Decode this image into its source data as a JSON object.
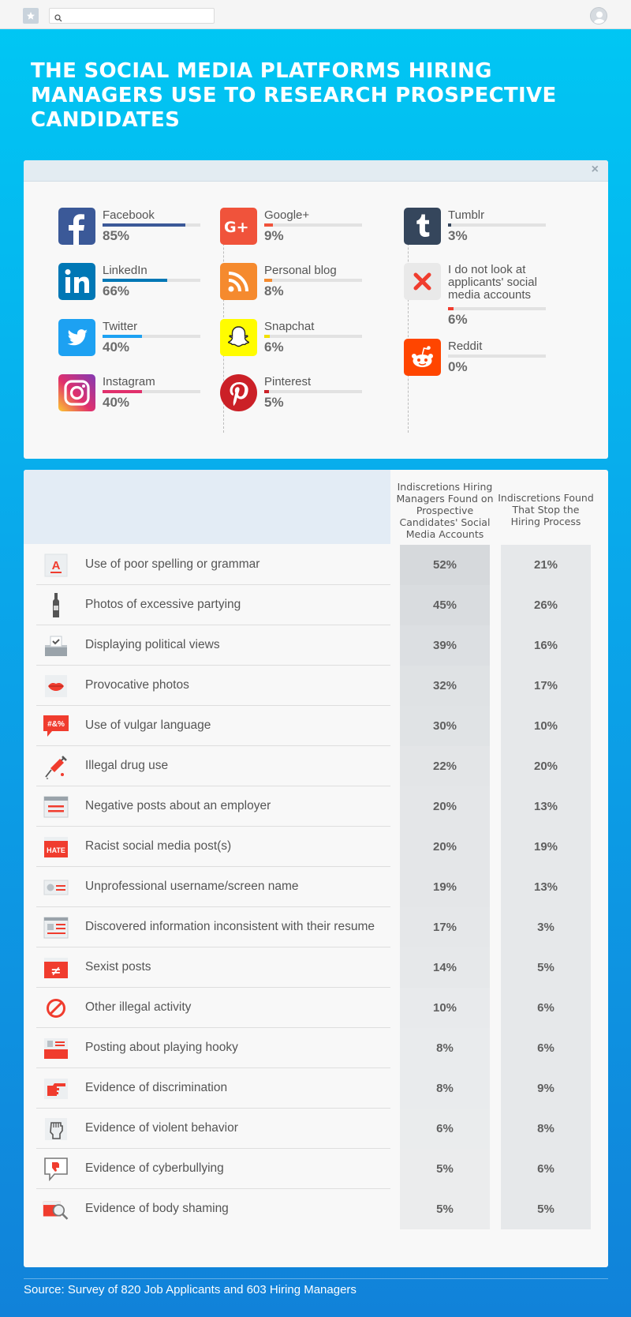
{
  "toolbar": {
    "search_placeholder": ""
  },
  "title": "THE SOCIAL MEDIA PLATFORMS HIRING MANAGERS USE TO RESEARCH PROSPECTIVE CANDIDATES",
  "platforms_card": {
    "close_label": "×",
    "platforms": [
      {
        "name": "Facebook",
        "percent": "85%",
        "value": 85,
        "icon": "facebook-icon",
        "color": "#3b5998"
      },
      {
        "name": "LinkedIn",
        "percent": "66%",
        "value": 66,
        "icon": "linkedin-icon",
        "color": "#0077b5"
      },
      {
        "name": "Twitter",
        "percent": "40%",
        "value": 40,
        "icon": "twitter-icon",
        "color": "#1da1f2"
      },
      {
        "name": "Instagram",
        "percent": "40%",
        "value": 40,
        "icon": "instagram-icon",
        "color": "#e1306c"
      },
      {
        "name": "Google+",
        "percent": "9%",
        "value": 9,
        "icon": "google-plus-icon",
        "color": "#f0533b"
      },
      {
        "name": "Personal blog",
        "percent": "8%",
        "value": 8,
        "icon": "rss-icon",
        "color": "#f58a2e"
      },
      {
        "name": "Snapchat",
        "percent": "6%",
        "value": 6,
        "icon": "snapchat-icon",
        "color": "#f2e000"
      },
      {
        "name": "Pinterest",
        "percent": "5%",
        "value": 5,
        "icon": "pinterest-icon",
        "color": "#cb2027"
      },
      {
        "name": "Tumblr",
        "percent": "3%",
        "value": 3,
        "icon": "tumblr-icon",
        "color": "#35465c"
      },
      {
        "name": "I do not look at applicants' social media accounts",
        "percent": "6%",
        "value": 6,
        "icon": "x-mark-icon",
        "color": "#f03c2e"
      },
      {
        "name": "Reddit",
        "percent": "0%",
        "value": 0,
        "icon": "reddit-icon",
        "color": "#ff4500"
      }
    ]
  },
  "table": {
    "col1_header": "Indiscretions Hiring Managers Found on Prospective Candidates' Social Media Accounts",
    "col2_header": "Indiscretions Found That Stop the Hiring Process",
    "rows": [
      {
        "label": "Use of poor spelling or grammar",
        "found": "52%",
        "stop": "21%",
        "icon": "spelling-icon",
        "shade": "#d6d9dc"
      },
      {
        "label": "Photos of excessive partying",
        "found": "45%",
        "stop": "26%",
        "icon": "bottle-icon",
        "shade": "#d9dcdf"
      },
      {
        "label": "Displaying political views",
        "found": "39%",
        "stop": "16%",
        "icon": "ballot-box-icon",
        "shade": "#dcdfe2"
      },
      {
        "label": "Provocative photos",
        "found": "32%",
        "stop": "17%",
        "icon": "lips-icon",
        "shade": "#dfe2e4"
      },
      {
        "label": "Use of vulgar language",
        "found": "30%",
        "stop": "10%",
        "icon": "vulgar-speech-icon",
        "shade": "#e0e3e5"
      },
      {
        "label": "Illegal drug use",
        "found": "22%",
        "stop": "20%",
        "icon": "syringe-icon",
        "shade": "#e3e5e7"
      },
      {
        "label": "Negative posts about an employer",
        "found": "20%",
        "stop": "13%",
        "icon": "browser-post-icon",
        "shade": "#e4e6e8"
      },
      {
        "label": "Racist social media post(s)",
        "found": "20%",
        "stop": "19%",
        "icon": "hate-post-icon",
        "shade": "#e4e6e8"
      },
      {
        "label": "Unprofessional username/screen name",
        "found": "19%",
        "stop": "13%",
        "icon": "username-card-icon",
        "shade": "#e4e6e8"
      },
      {
        "label": "Discovered information inconsistent with their resume",
        "found": "17%",
        "stop": "3%",
        "icon": "resume-icon",
        "shade": "#e5e7e9"
      },
      {
        "label": "Sexist posts",
        "found": "14%",
        "stop": "5%",
        "icon": "not-equal-icon",
        "shade": "#e6e8ea"
      },
      {
        "label": "Other illegal activity",
        "found": "10%",
        "stop": "6%",
        "icon": "prohibited-icon",
        "shade": "#e8eaec"
      },
      {
        "label": "Posting about playing hooky",
        "found": "8%",
        "stop": "6%",
        "icon": "profile-post-icon",
        "shade": "#e9ebed"
      },
      {
        "label": "Evidence of discrimination",
        "found": "8%",
        "stop": "9%",
        "icon": "pointing-hand-icon",
        "shade": "#e9ebed"
      },
      {
        "label": "Evidence of violent behavior",
        "found": "6%",
        "stop": "8%",
        "icon": "fist-icon",
        "shade": "#eaeced"
      },
      {
        "label": "Evidence of cyberbullying",
        "found": "5%",
        "stop": "6%",
        "icon": "thumbs-down-bubble-icon",
        "shade": "#ebeced"
      },
      {
        "label": "Evidence of body shaming",
        "found": "5%",
        "stop": "5%",
        "icon": "magnifier-post-icon",
        "shade": "#ebeced"
      }
    ]
  },
  "source": "Source: Survey of 820 Job Applicants and 603 Hiring Managers"
}
